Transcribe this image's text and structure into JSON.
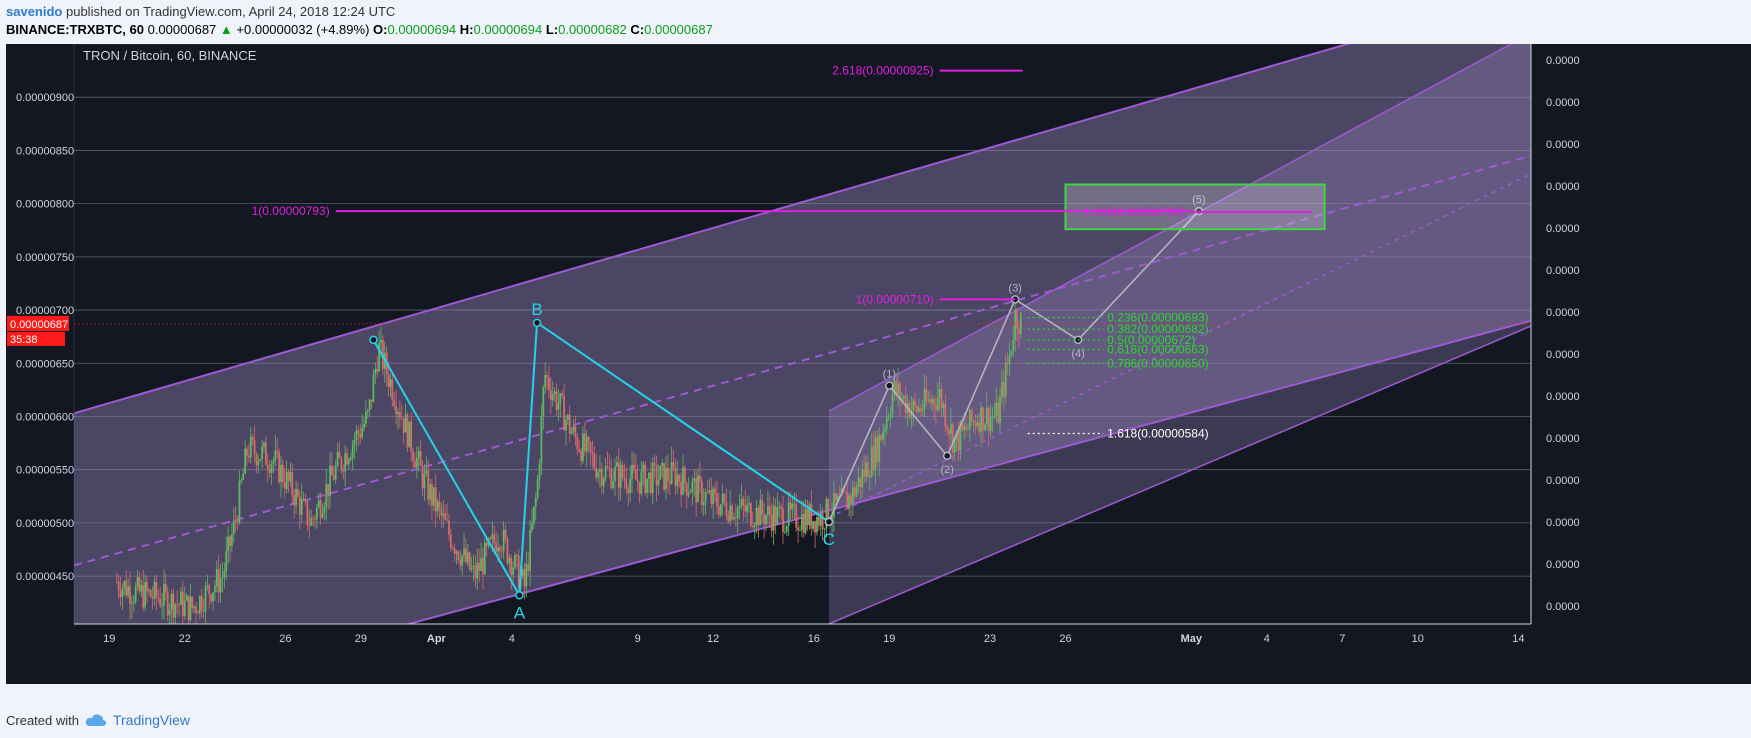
{
  "header": {
    "username": "savenido",
    "published_text": "published on TradingView.com, April 24, 2018 12:24 UTC",
    "symbol": "BINANCE:TRXBTC, 60",
    "last": "0.00000687",
    "change": "+0.00000032 (+4.89%)",
    "o_label": "O:",
    "o_value": "0.00000694",
    "h_label": "H:",
    "h_value": "0.00000694",
    "l_label": "L:",
    "l_value": "0.00000682",
    "c_label": "C:",
    "c_value": "0.00000687"
  },
  "footer": {
    "created_with": "Created with",
    "brand": "TradingView"
  },
  "colors": {
    "background": "#131722",
    "grid": "#5d606b",
    "channel": "#9c5bd0",
    "wave_abc": "#25d2e8",
    "wave_12345": "#b2b5be",
    "fib_magenta": "#e020e0",
    "fib_green": "#28d828",
    "target_box": "#3ed83e",
    "price_tag": "#ff1a1a",
    "candle_up": "#5fb95f",
    "candle_down": "#d86a6a"
  },
  "chart_data": {
    "type": "candlestick",
    "title": "TRON / Bitcoin, 60, BINANCE",
    "ylim": [
      4.05e-06,
      9.5e-06
    ],
    "y_ticks": [
      "0.00000450",
      "0.00000500",
      "0.00000550",
      "0.00000600",
      "0.00000650",
      "0.00000700",
      "0.00000750",
      "0.00000800",
      "0.00000850",
      "0.00000900"
    ],
    "right_axis_label": "0.0000",
    "x_ticks": [
      "19",
      "22",
      "26",
      "29",
      "Apr",
      "4",
      "9",
      "12",
      "16",
      "19",
      "23",
      "26",
      "May",
      "4",
      "7",
      "10",
      "14"
    ],
    "x_tick_days": [
      19,
      22,
      26,
      29,
      32,
      35,
      40,
      43,
      47,
      50,
      54,
      57,
      62,
      65,
      68,
      71,
      75
    ],
    "x_range_days": [
      17.6,
      75.5
    ],
    "x_tick_unit": "day of month (March 19 = 19, April 1 = 32, May 1 = 62)",
    "current_price": "0.00000687",
    "countdown": "35:38",
    "price_path": [
      [
        19.3,
        4.45e-06
      ],
      [
        20.0,
        4.35e-06
      ],
      [
        21.0,
        4.3e-06
      ],
      [
        22.3,
        4.2e-06
      ],
      [
        23.5,
        4.5e-06
      ],
      [
        24.0,
        5e-06
      ],
      [
        24.5,
        5.7e-06
      ],
      [
        25.5,
        5.6e-06
      ],
      [
        26.3,
        5.3e-06
      ],
      [
        27.0,
        5e-06
      ],
      [
        28.0,
        5.5e-06
      ],
      [
        29.3,
        6e-06
      ],
      [
        29.7,
        6.65e-06
      ],
      [
        30.5,
        6.1e-06
      ],
      [
        31.5,
        5.4e-06
      ],
      [
        32.5,
        4.9e-06
      ],
      [
        33.5,
        4.5e-06
      ],
      [
        34.5,
        4.9e-06
      ],
      [
        35.5,
        4.4e-06
      ],
      [
        36.0,
        5.3e-06
      ],
      [
        36.3,
        6.4e-06
      ],
      [
        37.5,
        5.8e-06
      ],
      [
        38.5,
        5.5e-06
      ],
      [
        40.0,
        5.4e-06
      ],
      [
        41.5,
        5.45e-06
      ],
      [
        43.0,
        5.2e-06
      ],
      [
        44.5,
        5.1e-06
      ],
      [
        46.0,
        5.05e-06
      ],
      [
        47.3,
        5.05e-06
      ],
      [
        48.5,
        5.25e-06
      ],
      [
        49.5,
        5.7e-06
      ],
      [
        50.2,
        6.25e-06
      ],
      [
        51.0,
        6.05e-06
      ],
      [
        52.0,
        6.2e-06
      ],
      [
        52.6,
        5.75e-06
      ],
      [
        53.5,
        6e-06
      ],
      [
        54.3,
        6e-06
      ],
      [
        54.8,
        6.6e-06
      ],
      [
        55.0,
        6.95e-06
      ],
      [
        55.3,
        6.87e-06
      ]
    ],
    "channel": {
      "upper": [
        [
          17.6,
          6.03e-06
        ],
        [
          75.5,
          1e-05
        ]
      ],
      "lower": [
        [
          17.6,
          3.2e-06
        ],
        [
          75.5,
          6.9e-06
        ]
      ],
      "midline": [
        [
          17.6,
          4.6e-06
        ],
        [
          75.5,
          8.45e-06
        ]
      ]
    },
    "inner_channel": {
      "upper": [
        [
          47.6,
          6.05e-06
        ],
        [
          75.5,
          9.6e-06
        ]
      ],
      "lower": [
        [
          47.6,
          4.05e-06
        ],
        [
          75.5,
          6.85e-06
        ]
      ],
      "midline": [
        [
          47.6,
          5.05e-06
        ],
        [
          75.5,
          8.28e-06
        ]
      ]
    },
    "wave_abc": {
      "points": [
        [
          29.5,
          6.72e-06
        ],
        [
          35.3,
          4.32e-06
        ],
        [
          36.0,
          6.88e-06
        ],
        [
          47.6,
          5.01e-06
        ]
      ],
      "labels": [
        "",
        "A",
        "B",
        "C"
      ]
    },
    "wave_12345": {
      "points": [
        [
          47.6,
          5.01e-06
        ],
        [
          50.0,
          6.29e-06
        ],
        [
          52.3,
          5.63e-06
        ],
        [
          55.0,
          7.1e-06
        ],
        [
          57.5,
          6.72e-06
        ],
        [
          62.3,
          7.93e-06
        ]
      ],
      "labels": [
        "",
        "(1)",
        "(2)",
        "(3)",
        "(4)",
        "(5)"
      ]
    },
    "fib_levels": [
      {
        "label": "2.618(0.00000925)",
        "price": 9.25e-06,
        "x_start": 52.0,
        "x_end": 55.3,
        "color": "magenta"
      },
      {
        "label": "1(0.00000793)",
        "price": 7.93e-06,
        "x_start": 28.0,
        "x_end": 62.0,
        "color": "magenta"
      },
      {
        "label": "1.618(0.00000792)",
        "price": 7.92e-06,
        "x_start": 62.0,
        "x_end": 66.8,
        "color": "magenta"
      },
      {
        "label": "1(0.00000710)",
        "price": 7.1e-06,
        "x_start": 52.0,
        "x_end": 55.0,
        "color": "magenta"
      },
      {
        "label": "0.236(0.00000693)",
        "price": 6.93e-06,
        "x_start": 55.5,
        "x_end": 58.5,
        "color": "green"
      },
      {
        "label": "0.382(0.00000682)",
        "price": 6.82e-06,
        "x_start": 55.5,
        "x_end": 58.5,
        "color": "green"
      },
      {
        "label": "0.5(0.00000672)",
        "price": 6.72e-06,
        "x_start": 55.5,
        "x_end": 58.5,
        "color": "green"
      },
      {
        "label": "0.618(0.00000663)",
        "price": 6.63e-06,
        "x_start": 55.5,
        "x_end": 58.5,
        "color": "green"
      },
      {
        "label": "0.786(0.00000650)",
        "price": 6.5e-06,
        "x_start": 55.5,
        "x_end": 58.5,
        "color": "green"
      },
      {
        "label": "1.618(0.00000584)",
        "price": 5.84e-06,
        "x_start": 55.5,
        "x_end": 58.5,
        "color": "white"
      }
    ],
    "target_zone": {
      "x_start": 57.0,
      "x_end": 67.3,
      "price_top": 8.18e-06,
      "price_bottom": 7.76e-06
    }
  }
}
